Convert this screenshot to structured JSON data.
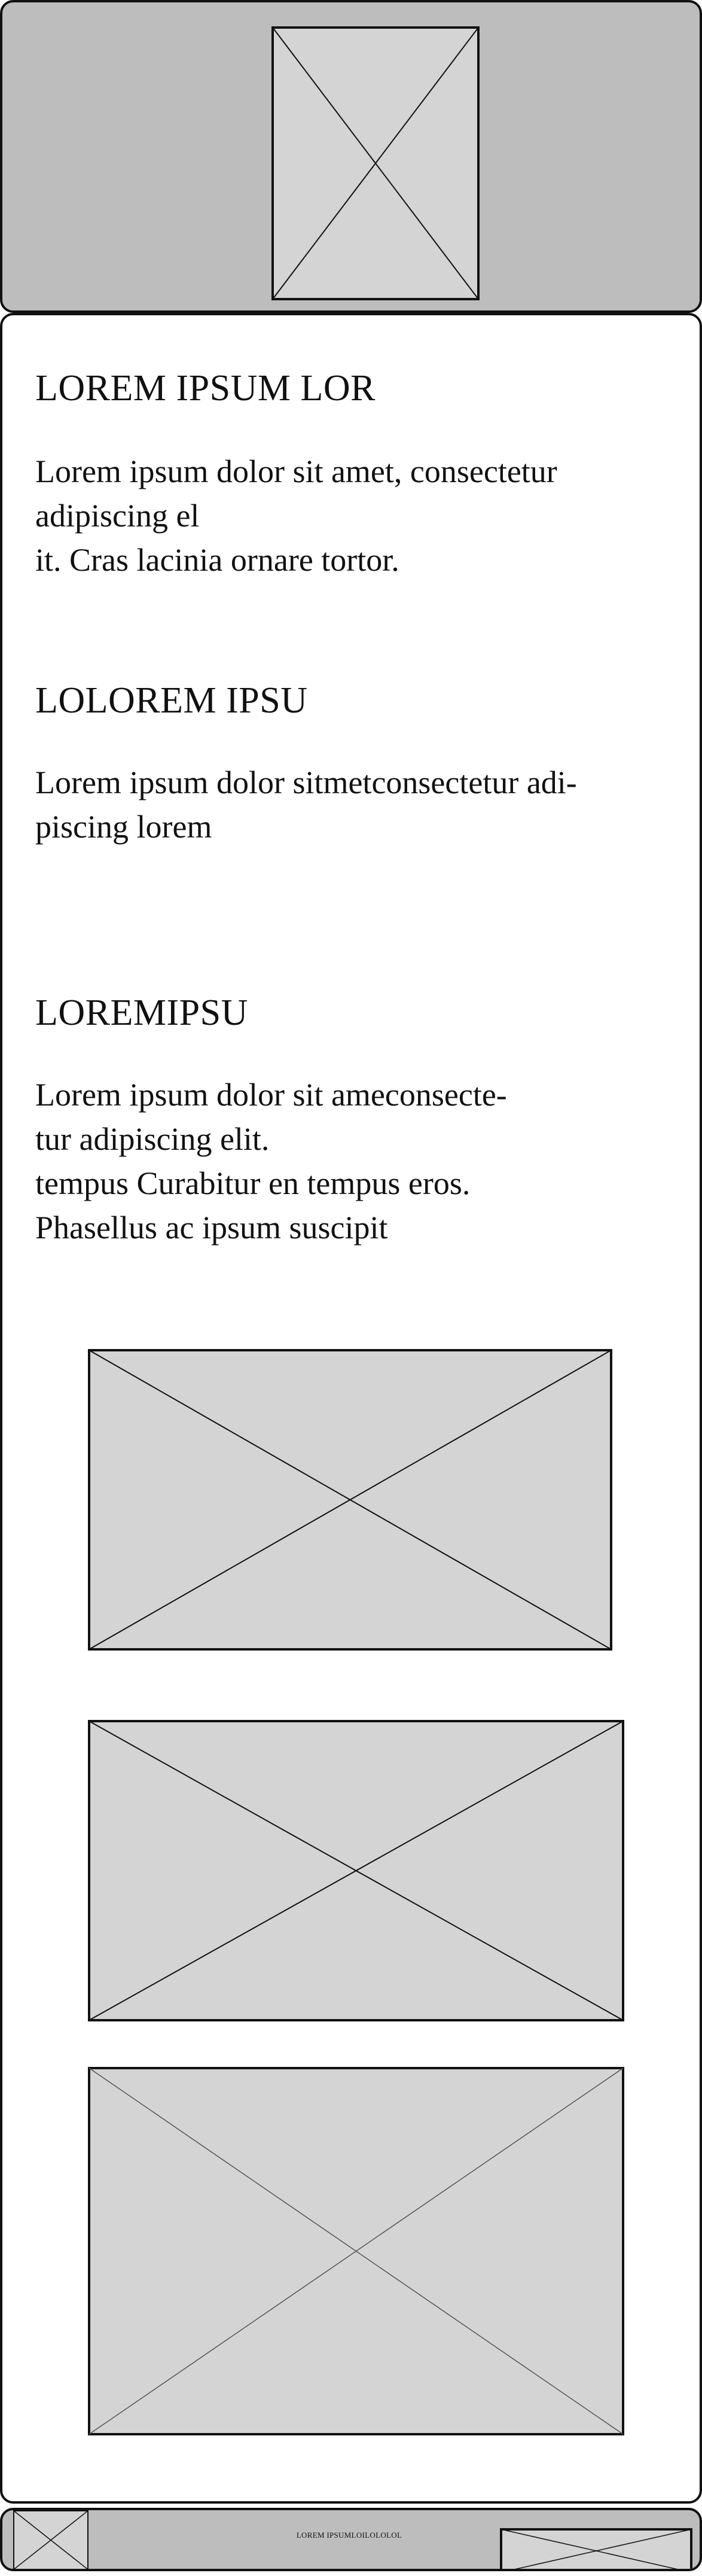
{
  "header": {
    "logo_icon": "image-placeholder-icon"
  },
  "sections": [
    {
      "heading": "LOREM IPSUM LOR",
      "lines": [
        "Lorem ipsum dolor sit amet, consectetur",
        "adipiscing el",
        "it. Cras lacinia ornare tortor."
      ]
    },
    {
      "heading": "LOLOREM IPSU",
      "lines": [
        "Lorem ipsum dolor sitmetconsectetur adi-",
        "piscing lorem"
      ]
    },
    {
      "heading": "LOREMIPSU",
      "lines": [
        "Lorem ipsum dolor sit ameconsecte-",
        "tur adipiscing elit.",
        "tempus Curabitur en tempus eros.",
        "Phasellus ac ipsum suscipit"
      ]
    }
  ],
  "images": [
    {
      "icon": "image-placeholder-icon"
    },
    {
      "icon": "image-placeholder-icon"
    },
    {
      "icon": "image-placeholder-icon"
    }
  ],
  "footer": {
    "text": "LOREM IPSUMLOILOLOLOL",
    "logo_icon": "image-placeholder-icon",
    "image_icon": "image-placeholder-icon"
  },
  "colors": {
    "header_background": "#bdbdbd",
    "placeholder_fill": "#d4d4d4",
    "border": "#111111",
    "content_background": "#ffffff"
  }
}
